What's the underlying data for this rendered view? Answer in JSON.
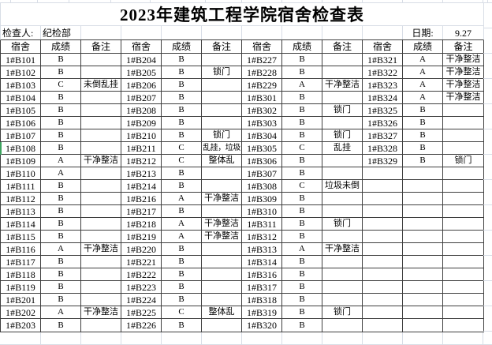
{
  "title": "2023年建筑工程学院宿舍检查表",
  "info": {
    "inspector_label": "检查人:",
    "inspector": "纪检部",
    "date_label": "日期:",
    "date": "9.27"
  },
  "headers": {
    "dorm": "宿舍",
    "grade": "成绩",
    "note": "备注"
  },
  "row_format": [
    "dorm",
    "grade",
    "note"
  ],
  "groups": [
    {
      "rows": [
        [
          "1#B101",
          "B",
          ""
        ],
        [
          "1#B102",
          "B",
          ""
        ],
        [
          "1#B103",
          "C",
          "未倒乱挂"
        ],
        [
          "1#B104",
          "B",
          ""
        ],
        [
          "1#B105",
          "B",
          ""
        ],
        [
          "1#B106",
          "B",
          ""
        ],
        [
          "1#B107",
          "B",
          ""
        ],
        [
          "1#B108",
          "B",
          ""
        ],
        [
          "1#B109",
          "A",
          "干净整洁"
        ],
        [
          "1#B110",
          "A",
          ""
        ],
        [
          "1#B111",
          "B",
          ""
        ],
        [
          "1#B112",
          "B",
          ""
        ],
        [
          "1#B113",
          "B",
          ""
        ],
        [
          "1#B114",
          "B",
          ""
        ],
        [
          "1#B115",
          "B",
          ""
        ],
        [
          "1#B116",
          "A",
          "干净整洁"
        ],
        [
          "1#B117",
          "B",
          ""
        ],
        [
          "1#B118",
          "B",
          ""
        ],
        [
          "1#B119",
          "B",
          ""
        ],
        [
          "1#B201",
          "B",
          ""
        ],
        [
          "1#B202",
          "A",
          "干净整洁"
        ],
        [
          "1#B203",
          "B",
          ""
        ]
      ]
    },
    {
      "rows": [
        [
          "1#B204",
          "B",
          ""
        ],
        [
          "1#B205",
          "B",
          "锁门"
        ],
        [
          "1#B206",
          "B",
          ""
        ],
        [
          "1#B207",
          "B",
          ""
        ],
        [
          "1#B208",
          "B",
          ""
        ],
        [
          "1#B209",
          "B",
          ""
        ],
        [
          "1#B210",
          "B",
          "锁门"
        ],
        [
          "1#B211",
          "C",
          "乱挂，垃圾"
        ],
        [
          "1#B212",
          "C",
          "整体乱"
        ],
        [
          "1#B213",
          "B",
          ""
        ],
        [
          "1#B214",
          "B",
          ""
        ],
        [
          "1#B216",
          "A",
          "干净整洁"
        ],
        [
          "1#B217",
          "B",
          ""
        ],
        [
          "1#B218",
          "A",
          "干净整洁"
        ],
        [
          "1#B219",
          "A",
          "干净整洁"
        ],
        [
          "1#B220",
          "B",
          ""
        ],
        [
          "1#B221",
          "B",
          ""
        ],
        [
          "1#B222",
          "B",
          ""
        ],
        [
          "1#B223",
          "B",
          ""
        ],
        [
          "1#B224",
          "B",
          ""
        ],
        [
          "1#B225",
          "C",
          "整体乱"
        ],
        [
          "1#B226",
          "B",
          ""
        ]
      ]
    },
    {
      "rows": [
        [
          "1#B227",
          "B",
          ""
        ],
        [
          "1#B228",
          "B",
          ""
        ],
        [
          "1#B229",
          "A",
          "干净整洁"
        ],
        [
          "1#B301",
          "B",
          ""
        ],
        [
          "1#B302",
          "B",
          "锁门"
        ],
        [
          "1#B303",
          "B",
          ""
        ],
        [
          "1#B304",
          "B",
          "锁门"
        ],
        [
          "1#B305",
          "C",
          "乱挂"
        ],
        [
          "1#B306",
          "B",
          ""
        ],
        [
          "1#B307",
          "B",
          ""
        ],
        [
          "1#B308",
          "C",
          "垃圾未倒"
        ],
        [
          "1#B309",
          "B",
          ""
        ],
        [
          "1#B310",
          "B",
          ""
        ],
        [
          "1#B311",
          "B",
          "锁门"
        ],
        [
          "1#B312",
          "B",
          ""
        ],
        [
          "1#B313",
          "A",
          "干净整洁"
        ],
        [
          "1#B314",
          "B",
          ""
        ],
        [
          "1#B316",
          "B",
          ""
        ],
        [
          "1#B317",
          "B",
          ""
        ],
        [
          "1#B318",
          "B",
          ""
        ],
        [
          "1#B319",
          "B",
          "锁门"
        ],
        [
          "1#B320",
          "B",
          ""
        ]
      ]
    },
    {
      "rows": [
        [
          "1#B321",
          "A",
          "干净整洁"
        ],
        [
          "1#B322",
          "A",
          "干净整洁"
        ],
        [
          "1#B323",
          "A",
          "干净整洁"
        ],
        [
          "1#B324",
          "A",
          "干净整洁"
        ],
        [
          "1#B325",
          "B",
          ""
        ],
        [
          "1#B326",
          "B",
          ""
        ],
        [
          "1#B327",
          "B",
          ""
        ],
        [
          "1#B328",
          "B",
          ""
        ],
        [
          "1#B329",
          "B",
          "锁门"
        ],
        [
          "",
          "",
          ""
        ],
        [
          "",
          "",
          ""
        ],
        [
          "",
          "",
          ""
        ],
        [
          "",
          "",
          ""
        ],
        [
          "",
          "",
          ""
        ],
        [
          "",
          "",
          ""
        ],
        [
          "",
          "",
          ""
        ],
        [
          "",
          "",
          ""
        ],
        [
          "",
          "",
          ""
        ],
        [
          "",
          "",
          ""
        ],
        [
          "",
          "",
          ""
        ],
        [
          "",
          "",
          ""
        ],
        [
          "",
          "",
          ""
        ]
      ]
    }
  ],
  "row_count": 22,
  "group_count": 4,
  "selection": {
    "row": "1#B108",
    "row_index": 7,
    "edge": "left"
  },
  "colors": {
    "table_border": "#3f3f3f",
    "sheet_gridline": "#d8dde6",
    "selection_green": "#3da35f",
    "background": "#ffffff",
    "text": "#000000"
  }
}
